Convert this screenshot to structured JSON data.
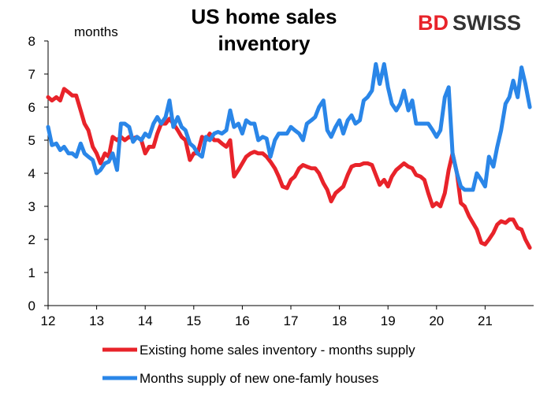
{
  "chart_data": {
    "type": "line",
    "title_lines": [
      "US home sales",
      "inventory"
    ],
    "ylabel": "months",
    "ylim": [
      0,
      8
    ],
    "yticks": [
      0,
      1,
      2,
      3,
      4,
      5,
      6,
      7,
      8
    ],
    "xlim": [
      2012,
      2022
    ],
    "xticks": [
      {
        "label": "12",
        "value": 2012
      },
      {
        "label": "13",
        "value": 2013
      },
      {
        "label": "14",
        "value": 2014
      },
      {
        "label": "15",
        "value": 2015
      },
      {
        "label": "16",
        "value": 2016
      },
      {
        "label": "17",
        "value": 2017
      },
      {
        "label": "18",
        "value": 2018
      },
      {
        "label": "19",
        "value": 2019
      },
      {
        "label": "20",
        "value": 2020
      },
      {
        "label": "21",
        "value": 2021
      }
    ],
    "grid": false,
    "legend_position": "bottom",
    "series": [
      {
        "name": "Existing home sales inventory - months supply",
        "color": "#e8232a",
        "points": [
          [
            2012.0,
            6.3
          ],
          [
            2012.08,
            6.2
          ],
          [
            2012.17,
            6.3
          ],
          [
            2012.25,
            6.2
          ],
          [
            2012.33,
            6.55
          ],
          [
            2012.42,
            6.45
          ],
          [
            2012.5,
            6.35
          ],
          [
            2012.58,
            6.35
          ],
          [
            2012.67,
            5.9
          ],
          [
            2012.75,
            5.5
          ],
          [
            2012.83,
            5.3
          ],
          [
            2012.92,
            4.8
          ],
          [
            2013.0,
            4.6
          ],
          [
            2013.08,
            4.3
          ],
          [
            2013.17,
            4.6
          ],
          [
            2013.25,
            4.5
          ],
          [
            2013.33,
            5.1
          ],
          [
            2013.42,
            5.0
          ],
          [
            2013.5,
            5.1
          ],
          [
            2013.58,
            5.0
          ],
          [
            2013.67,
            5.1
          ],
          [
            2013.75,
            5.05
          ],
          [
            2013.83,
            5.1
          ],
          [
            2013.92,
            5.0
          ],
          [
            2014.0,
            4.6
          ],
          [
            2014.08,
            4.8
          ],
          [
            2014.17,
            4.8
          ],
          [
            2014.25,
            5.2
          ],
          [
            2014.33,
            5.5
          ],
          [
            2014.42,
            5.5
          ],
          [
            2014.5,
            5.65
          ],
          [
            2014.58,
            5.5
          ],
          [
            2014.67,
            5.3
          ],
          [
            2014.75,
            5.1
          ],
          [
            2014.83,
            5.0
          ],
          [
            2014.92,
            4.4
          ],
          [
            2015.0,
            4.6
          ],
          [
            2015.08,
            4.6
          ],
          [
            2015.17,
            5.1
          ],
          [
            2015.25,
            5.0
          ],
          [
            2015.33,
            5.2
          ],
          [
            2015.42,
            5.0
          ],
          [
            2015.5,
            5.0
          ],
          [
            2015.58,
            4.9
          ],
          [
            2015.67,
            4.8
          ],
          [
            2015.75,
            5.0
          ],
          [
            2015.83,
            3.9
          ],
          [
            2015.92,
            4.1
          ],
          [
            2016.0,
            4.3
          ],
          [
            2016.08,
            4.5
          ],
          [
            2016.17,
            4.6
          ],
          [
            2016.25,
            4.65
          ],
          [
            2016.33,
            4.6
          ],
          [
            2016.42,
            4.6
          ],
          [
            2016.5,
            4.5
          ],
          [
            2016.58,
            4.35
          ],
          [
            2016.67,
            4.15
          ],
          [
            2016.75,
            3.9
          ],
          [
            2016.83,
            3.6
          ],
          [
            2016.92,
            3.55
          ],
          [
            2017.0,
            3.8
          ],
          [
            2017.08,
            3.9
          ],
          [
            2017.17,
            4.15
          ],
          [
            2017.25,
            4.25
          ],
          [
            2017.33,
            4.2
          ],
          [
            2017.42,
            4.15
          ],
          [
            2017.5,
            4.15
          ],
          [
            2017.58,
            4.0
          ],
          [
            2017.67,
            3.7
          ],
          [
            2017.75,
            3.5
          ],
          [
            2017.83,
            3.15
          ],
          [
            2017.92,
            3.4
          ],
          [
            2018.0,
            3.5
          ],
          [
            2018.08,
            3.6
          ],
          [
            2018.17,
            3.95
          ],
          [
            2018.25,
            4.2
          ],
          [
            2018.33,
            4.25
          ],
          [
            2018.42,
            4.25
          ],
          [
            2018.5,
            4.3
          ],
          [
            2018.58,
            4.3
          ],
          [
            2018.67,
            4.25
          ],
          [
            2018.75,
            3.95
          ],
          [
            2018.83,
            3.65
          ],
          [
            2018.92,
            3.8
          ],
          [
            2019.0,
            3.6
          ],
          [
            2019.08,
            3.9
          ],
          [
            2019.17,
            4.1
          ],
          [
            2019.25,
            4.2
          ],
          [
            2019.33,
            4.3
          ],
          [
            2019.42,
            4.2
          ],
          [
            2019.5,
            4.15
          ],
          [
            2019.58,
            3.95
          ],
          [
            2019.67,
            3.9
          ],
          [
            2019.75,
            3.8
          ],
          [
            2019.83,
            3.4
          ],
          [
            2019.92,
            3.0
          ],
          [
            2020.0,
            3.1
          ],
          [
            2020.08,
            3.0
          ],
          [
            2020.17,
            3.4
          ],
          [
            2020.25,
            4.1
          ],
          [
            2020.33,
            4.6
          ],
          [
            2020.42,
            4.0
          ],
          [
            2020.5,
            3.1
          ],
          [
            2020.58,
            3.0
          ],
          [
            2020.67,
            2.7
          ],
          [
            2020.75,
            2.5
          ],
          [
            2020.83,
            2.3
          ],
          [
            2020.92,
            1.9
          ],
          [
            2021.0,
            1.85
          ],
          [
            2021.08,
            2.0
          ],
          [
            2021.17,
            2.2
          ],
          [
            2021.25,
            2.45
          ],
          [
            2021.33,
            2.55
          ],
          [
            2021.42,
            2.5
          ],
          [
            2021.5,
            2.6
          ],
          [
            2021.58,
            2.6
          ],
          [
            2021.67,
            2.35
          ],
          [
            2021.75,
            2.3
          ],
          [
            2021.83,
            2.0
          ],
          [
            2021.92,
            1.75
          ]
        ]
      },
      {
        "name": "Months supply of new one-famly houses",
        "color": "#2a86e8",
        "points": [
          [
            2012.0,
            5.4
          ],
          [
            2012.08,
            4.85
          ],
          [
            2012.17,
            4.9
          ],
          [
            2012.25,
            4.7
          ],
          [
            2012.33,
            4.8
          ],
          [
            2012.42,
            4.6
          ],
          [
            2012.5,
            4.6
          ],
          [
            2012.58,
            4.5
          ],
          [
            2012.67,
            4.9
          ],
          [
            2012.75,
            4.6
          ],
          [
            2012.83,
            4.5
          ],
          [
            2012.92,
            4.4
          ],
          [
            2013.0,
            4.0
          ],
          [
            2013.08,
            4.1
          ],
          [
            2013.17,
            4.3
          ],
          [
            2013.25,
            4.35
          ],
          [
            2013.33,
            4.6
          ],
          [
            2013.42,
            4.1
          ],
          [
            2013.5,
            5.5
          ],
          [
            2013.58,
            5.5
          ],
          [
            2013.67,
            5.4
          ],
          [
            2013.75,
            4.95
          ],
          [
            2013.83,
            5.1
          ],
          [
            2013.92,
            5.0
          ],
          [
            2014.0,
            5.2
          ],
          [
            2014.08,
            5.1
          ],
          [
            2014.17,
            5.5
          ],
          [
            2014.25,
            5.7
          ],
          [
            2014.33,
            5.5
          ],
          [
            2014.42,
            5.7
          ],
          [
            2014.5,
            6.2
          ],
          [
            2014.58,
            5.4
          ],
          [
            2014.67,
            5.7
          ],
          [
            2014.75,
            5.4
          ],
          [
            2014.83,
            5.3
          ],
          [
            2014.92,
            4.9
          ],
          [
            2015.0,
            4.8
          ],
          [
            2015.08,
            4.6
          ],
          [
            2015.17,
            4.5
          ],
          [
            2015.25,
            5.1
          ],
          [
            2015.33,
            5.0
          ],
          [
            2015.42,
            5.2
          ],
          [
            2015.5,
            5.25
          ],
          [
            2015.58,
            5.2
          ],
          [
            2015.67,
            5.3
          ],
          [
            2015.75,
            5.9
          ],
          [
            2015.83,
            5.4
          ],
          [
            2015.92,
            5.5
          ],
          [
            2016.0,
            5.2
          ],
          [
            2016.08,
            5.6
          ],
          [
            2016.17,
            5.5
          ],
          [
            2016.25,
            5.5
          ],
          [
            2016.33,
            5.0
          ],
          [
            2016.42,
            5.1
          ],
          [
            2016.5,
            5.05
          ],
          [
            2016.58,
            4.5
          ],
          [
            2016.67,
            5.0
          ],
          [
            2016.75,
            5.2
          ],
          [
            2016.83,
            5.2
          ],
          [
            2016.92,
            5.2
          ],
          [
            2017.0,
            5.4
          ],
          [
            2017.08,
            5.3
          ],
          [
            2017.17,
            5.2
          ],
          [
            2017.25,
            5.0
          ],
          [
            2017.33,
            5.5
          ],
          [
            2017.42,
            5.6
          ],
          [
            2017.5,
            5.7
          ],
          [
            2017.58,
            6.0
          ],
          [
            2017.67,
            6.2
          ],
          [
            2017.75,
            5.3
          ],
          [
            2017.83,
            5.1
          ],
          [
            2017.92,
            5.4
          ],
          [
            2018.0,
            5.6
          ],
          [
            2018.08,
            5.2
          ],
          [
            2018.17,
            5.6
          ],
          [
            2018.25,
            5.75
          ],
          [
            2018.33,
            5.5
          ],
          [
            2018.42,
            5.6
          ],
          [
            2018.5,
            6.2
          ],
          [
            2018.58,
            6.3
          ],
          [
            2018.67,
            6.5
          ],
          [
            2018.75,
            7.3
          ],
          [
            2018.83,
            6.7
          ],
          [
            2018.92,
            7.3
          ],
          [
            2019.0,
            6.6
          ],
          [
            2019.08,
            6.1
          ],
          [
            2019.17,
            5.9
          ],
          [
            2019.25,
            6.1
          ],
          [
            2019.33,
            6.5
          ],
          [
            2019.42,
            5.9
          ],
          [
            2019.5,
            6.2
          ],
          [
            2019.58,
            5.5
          ],
          [
            2019.67,
            5.5
          ],
          [
            2019.75,
            5.5
          ],
          [
            2019.83,
            5.5
          ],
          [
            2019.92,
            5.3
          ],
          [
            2020.0,
            5.1
          ],
          [
            2020.08,
            5.3
          ],
          [
            2020.17,
            6.3
          ],
          [
            2020.25,
            6.6
          ],
          [
            2020.33,
            4.6
          ],
          [
            2020.42,
            4.0
          ],
          [
            2020.5,
            3.6
          ],
          [
            2020.58,
            3.5
          ],
          [
            2020.67,
            3.5
          ],
          [
            2020.75,
            3.5
          ],
          [
            2020.83,
            4.0
          ],
          [
            2020.92,
            3.8
          ],
          [
            2021.0,
            3.6
          ],
          [
            2021.08,
            4.5
          ],
          [
            2021.17,
            4.2
          ],
          [
            2021.25,
            4.8
          ],
          [
            2021.33,
            5.3
          ],
          [
            2021.42,
            6.1
          ],
          [
            2021.5,
            6.3
          ],
          [
            2021.58,
            6.8
          ],
          [
            2021.67,
            6.3
          ],
          [
            2021.75,
            7.2
          ],
          [
            2021.83,
            6.7
          ],
          [
            2021.92,
            6.0
          ]
        ]
      }
    ]
  },
  "brand": {
    "logo_text_bd": "BD",
    "logo_text_swiss": "SWISS",
    "logo_colors": {
      "bd": "#e8232a",
      "swiss": "#333333"
    }
  }
}
